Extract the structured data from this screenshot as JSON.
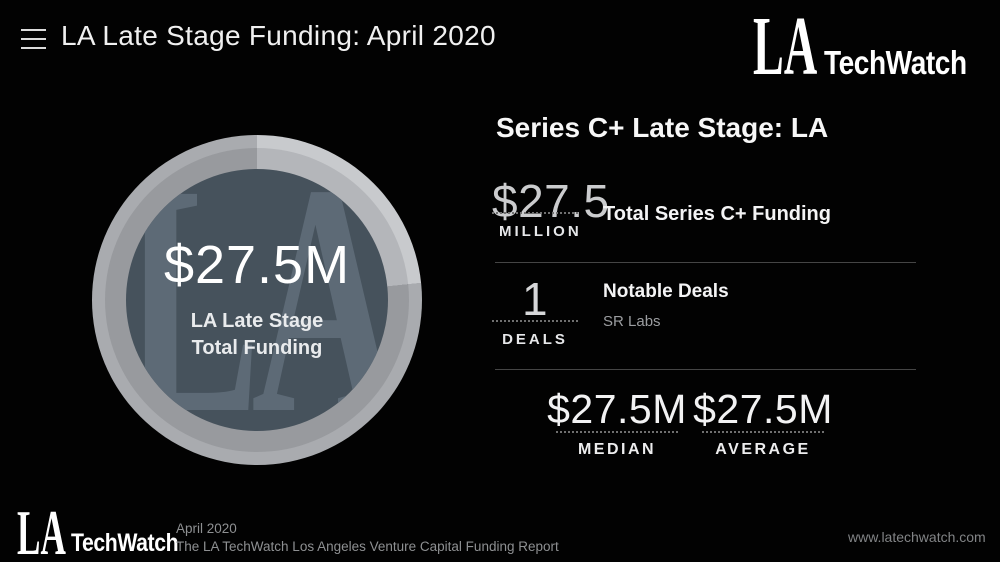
{
  "header": {
    "title": "LA Late Stage Funding: April 2020",
    "menu_icon": "hamburger-icon"
  },
  "brand": {
    "la": "LA",
    "name": "TechWatch"
  },
  "donut": {
    "center_value": "$27.5M",
    "center_label_line1": "LA Late Stage",
    "center_label_line2": "Total Funding",
    "watermark": "LA",
    "colors": {
      "ring_outer_light": "#c8cacd",
      "ring_outer_dark": "#a9abaf",
      "ring_inner_light": "#b4b6ba",
      "ring_inner_dark": "#989a9e",
      "disc": "#46525c",
      "watermark": "#5d6a76"
    }
  },
  "chart_data": {
    "type": "pie",
    "title": "LA Late Stage Total Funding",
    "categories": [
      "Series C+ Late Stage"
    ],
    "values": [
      27.5
    ],
    "unit": "USD millions",
    "center_label": "$27.5M",
    "highlight_arc_deg": [
      0,
      84
    ],
    "legend_position": "none",
    "notes": "single-value donut; lighter highlight arc from 0deg to 84deg clockwise"
  },
  "stats": {
    "heading": "Series C+ Late Stage: LA",
    "rows": [
      {
        "value": "$27.5",
        "unit": "MILLION",
        "label": "Total Series C+ Funding"
      },
      {
        "value": "1",
        "unit": "DEALS",
        "label": "Notable Deals",
        "sublabel": "SR Labs"
      }
    ],
    "summary": [
      {
        "value": "$27.5M",
        "label": "MEDIAN"
      },
      {
        "value": "$27.5M",
        "label": "AVERAGE"
      }
    ]
  },
  "footer": {
    "date": "April 2020",
    "report": "The LA TechWatch Los Angeles Venture Capital Funding Report",
    "website": "www.latechwatch.com"
  }
}
